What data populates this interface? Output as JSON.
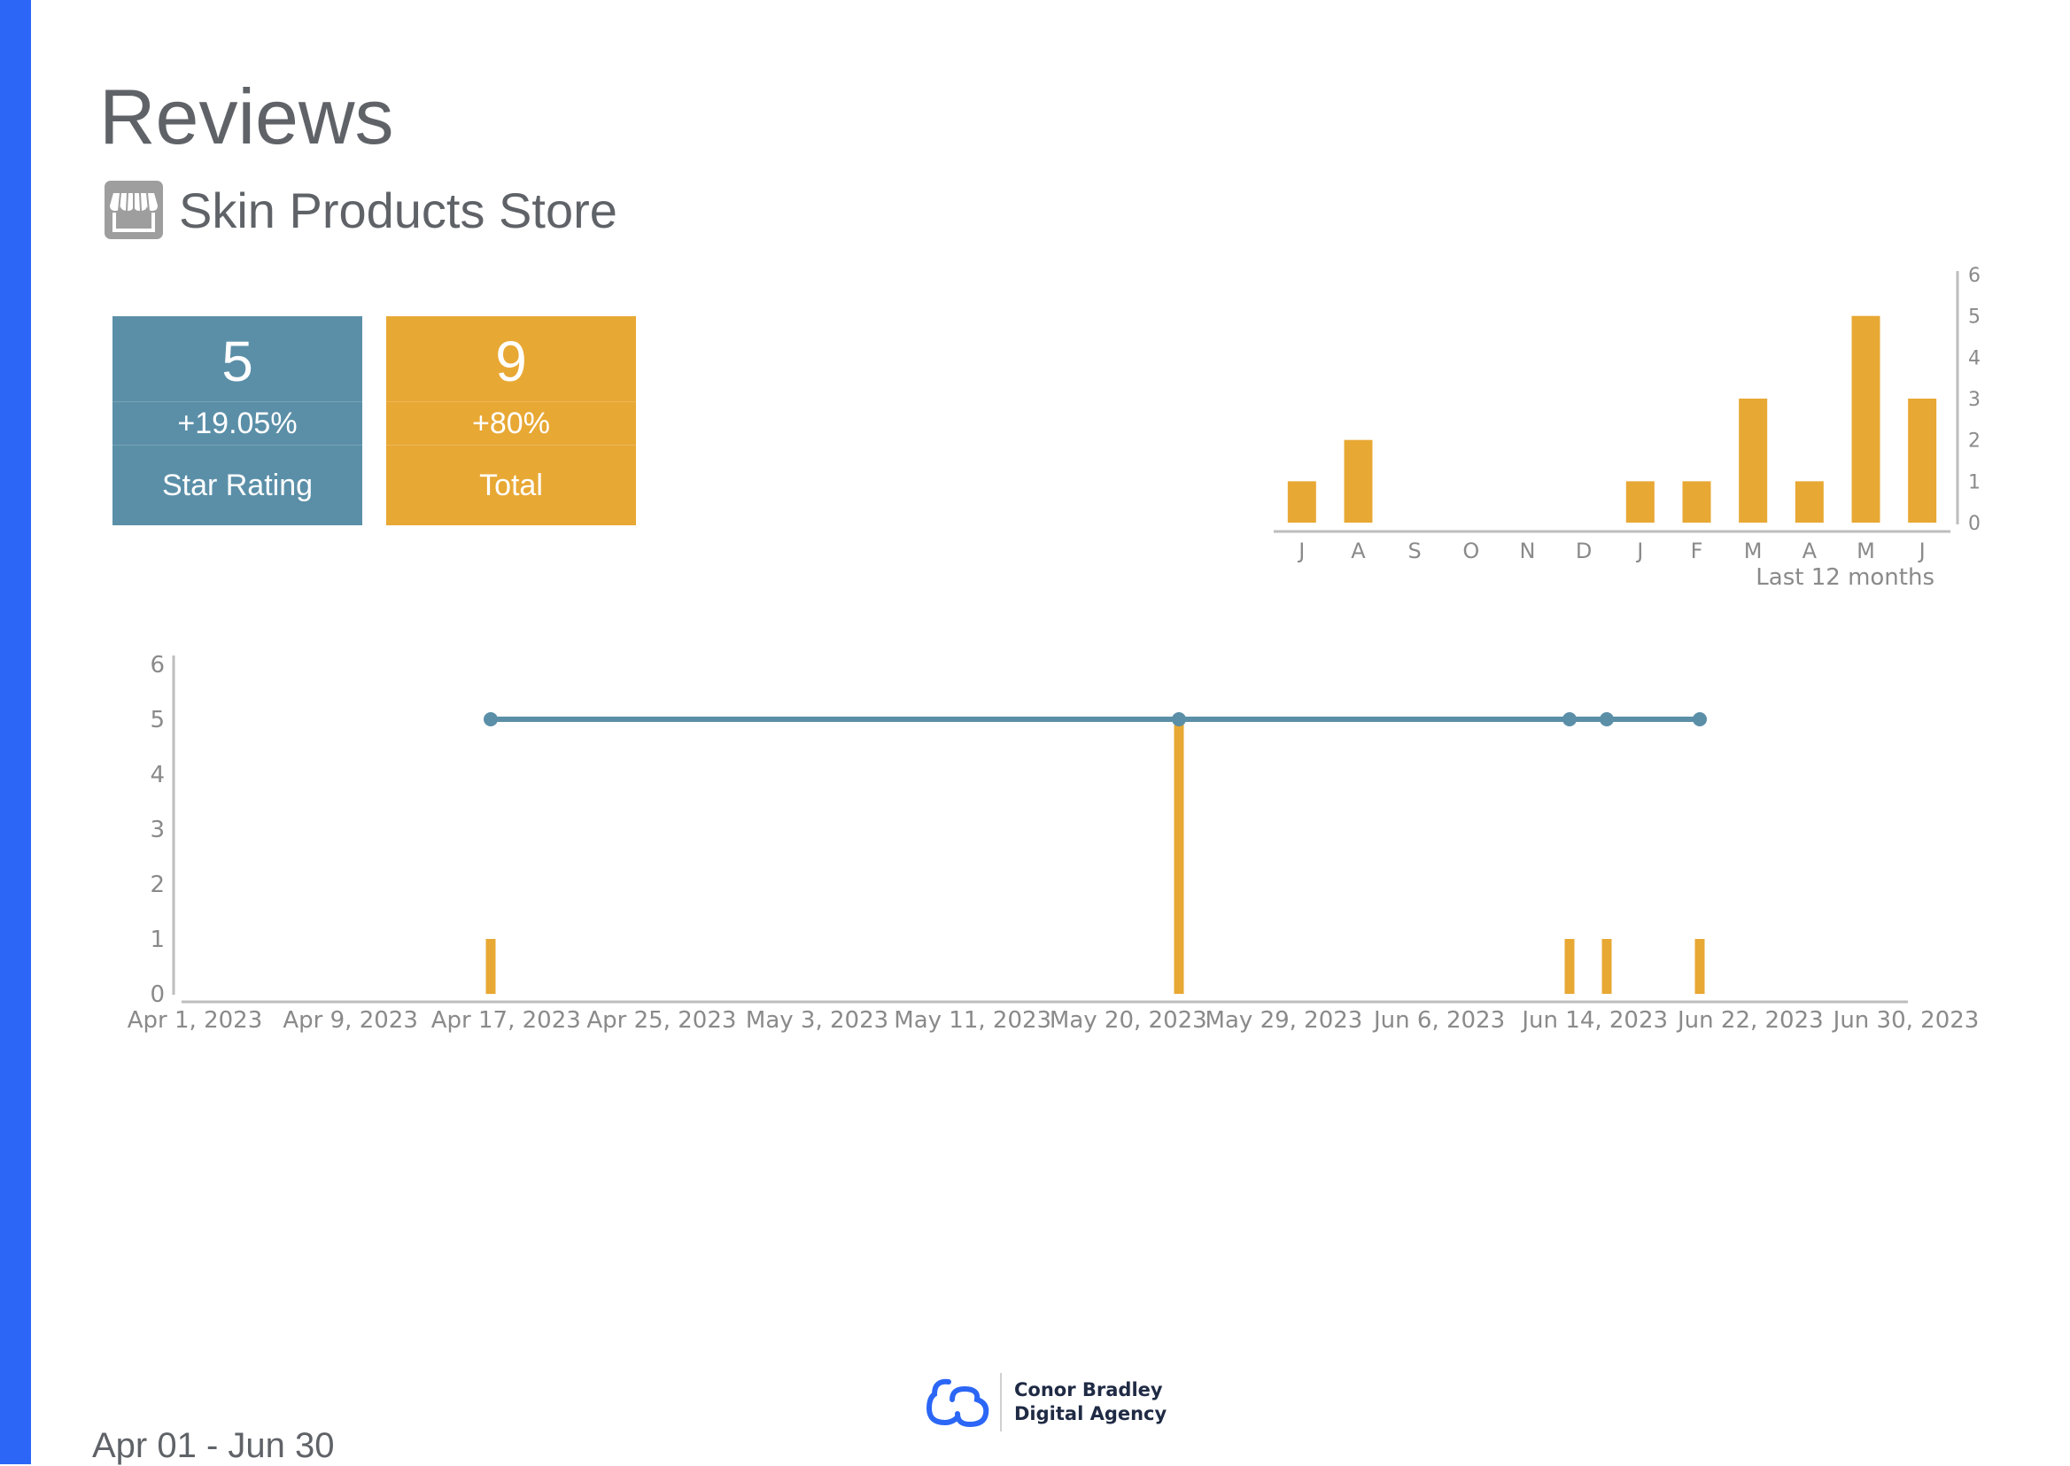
{
  "header": {
    "title": "Reviews",
    "store_name": "Skin Products Store"
  },
  "kpis": {
    "rating": {
      "value": "5",
      "delta": "+19.05%",
      "label": "Star Rating"
    },
    "total": {
      "value": "9",
      "delta": "+80%",
      "label": "Total"
    }
  },
  "colors": {
    "sidebar": "#2b66f6",
    "rating": "#5b8fa8",
    "total": "#e8a834",
    "line": "#5b8fa8"
  },
  "icons": {
    "store": "storefront-icon",
    "logo": "agency-logo-icon"
  },
  "footer": {
    "date_range": "Apr 01 - Jun 30",
    "agency_line1": "Conor Bradley",
    "agency_line2": "Digital Agency"
  },
  "chart_data": [
    {
      "type": "bar",
      "categories": [
        "J",
        "A",
        "S",
        "O",
        "N",
        "D",
        "J",
        "F",
        "M",
        "A",
        "M",
        "J"
      ],
      "values": [
        1,
        2,
        0,
        0,
        0,
        0,
        1,
        1,
        3,
        1,
        5,
        3
      ],
      "xlabel": "Last 12 months",
      "ylim": [
        0,
        6
      ],
      "yticks": [
        0,
        1,
        2,
        3,
        4,
        5,
        6
      ],
      "y_axis_side": "right"
    },
    {
      "type": "bar+line",
      "x_tick_labels": [
        "Apr 1, 2023",
        "Apr 9, 2023",
        "Apr 17, 2023",
        "Apr 25, 2023",
        "May 3, 2023",
        "May 11, 2023",
        "May 20, 2023",
        "May 29, 2023",
        "Jun 6, 2023",
        "Jun 14, 2023",
        "Jun 22, 2023",
        "Jun 30, 2023"
      ],
      "xlim": [
        "2023-04-01",
        "2023-07-02"
      ],
      "ylim": [
        0,
        6
      ],
      "yticks": [
        0,
        1,
        2,
        3,
        4,
        5,
        6
      ],
      "series": [
        {
          "type": "bar",
          "x": [
            "2023-04-17",
            "2023-05-24",
            "2023-06-14",
            "2023-06-16",
            "2023-06-21"
          ],
          "values": [
            1,
            5,
            1,
            1,
            1
          ]
        },
        {
          "type": "line",
          "x": [
            "2023-04-17",
            "2023-05-24",
            "2023-06-14",
            "2023-06-16",
            "2023-06-21"
          ],
          "values": [
            5,
            5,
            5,
            5,
            5
          ]
        }
      ]
    }
  ]
}
